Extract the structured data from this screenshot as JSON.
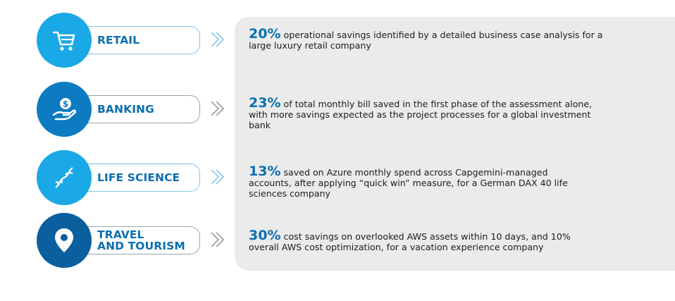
{
  "colors": {
    "light_blue": "#1ba8e6",
    "mid_blue": "#0c7bc2",
    "dark_blue": "#0b5f9e",
    "panel_gray": "#ebebeb",
    "pill_border": "#7ec3ea"
  },
  "industries": [
    {
      "name": "RETAIL",
      "icon": "shopping-cart-icon",
      "percent": "20%",
      "text": "operational savings identified by a detailed business case analysis for a large luxury retail company"
    },
    {
      "name": "BANKING",
      "icon": "hand-money-icon",
      "percent": "23%",
      "text": "of total monthly bill saved in the first phase of the assessment alone, with more savings expected as the project processes for a global investment bank"
    },
    {
      "name": "LIFE SCIENCE",
      "icon": "dna-icon",
      "percent": "13%",
      "text": "saved on Azure monthly spend across Capgemini-managed accounts, after applying “quick win” measure, for a German DAX 40 life sciences company"
    },
    {
      "name_line1": "TRAVEL",
      "name_line2": "AND TOURISM",
      "icon": "location-pin-icon",
      "percent": "30%",
      "text": "cost savings on overlooked AWS assets within 10 days, and 10% overall AWS cost optimization, for a vacation experience company"
    }
  ]
}
